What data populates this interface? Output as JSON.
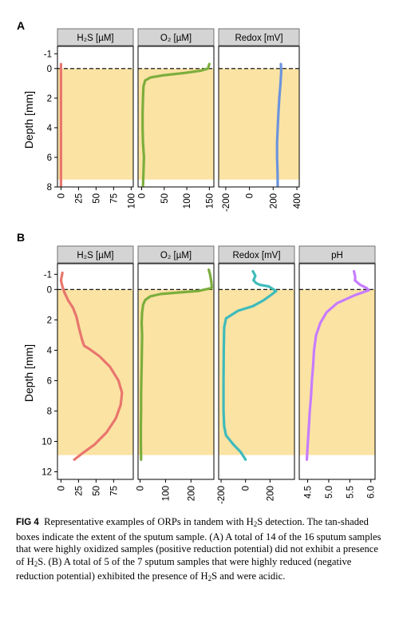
{
  "figure": {
    "panel_a_label": "A",
    "panel_b_label": "B",
    "y_axis_label": "Depth [mm]"
  },
  "caption": {
    "fig_label": "FIG 4",
    "text_1": "Representative examples of ORPs in tandem with H",
    "sub_1": "2",
    "text_2": "S detection. The tan-shaded boxes indicate the extent of the sputum sample. (A) A total of 14 of the 16 sputum samples that were highly oxidized samples (positive reduction potential) did not exhibit a presence of H",
    "sub_2": "2",
    "text_3": "S. (B) A total of 5 of the 7 sputum samples that were highly reduced (negative reduction potential) exhibited the presence of H",
    "sub_3": "2",
    "text_4": "S and were acidic."
  },
  "chart_data": [
    {
      "panel": "A",
      "type": "line",
      "ylabel": "Depth [mm]",
      "ylim": [
        8,
        -1.5
      ],
      "yticks": [
        -1,
        0,
        2,
        4,
        6,
        8
      ],
      "surface_line": 0,
      "sample_extent": [
        0,
        7.5
      ],
      "colors": {
        "H2S": "#E8766D",
        "O2": "#7CAE3D",
        "Redox": "#6C94DC",
        "shade": "#FBE3A4"
      },
      "facets": [
        {
          "title": "H₂S [µM]",
          "xlim": [
            -5,
            103
          ],
          "xticks": [
            0,
            25,
            50,
            75,
            100
          ],
          "series": [
            {
              "name": "H2S",
              "points": [
                [
                  0,
                  -0.3
                ],
                [
                  0,
                  1
                ],
                [
                  0,
                  2
                ],
                [
                  0,
                  3
                ],
                [
                  0,
                  4
                ],
                [
                  0,
                  5
                ],
                [
                  0,
                  6
                ],
                [
                  0,
                  7
                ],
                [
                  0,
                  7.9
                ]
              ]
            }
          ]
        },
        {
          "title": "O₂ [µM]",
          "xlim": [
            -8,
            160
          ],
          "xticks": [
            0,
            50,
            100,
            150
          ],
          "series": [
            {
              "name": "O2",
              "points": [
                [
                  150,
                  -0.3
                ],
                [
                  147,
                  0
                ],
                [
                  130,
                  0.15
                ],
                [
                  95,
                  0.3
                ],
                [
                  50,
                  0.45
                ],
                [
                  20,
                  0.6
                ],
                [
                  8,
                  0.8
                ],
                [
                  4,
                  1.2
                ],
                [
                  3,
                  2
                ],
                [
                  2,
                  3
                ],
                [
                  2,
                  4
                ],
                [
                  3,
                  5
                ],
                [
                  5,
                  6
                ],
                [
                  4,
                  7
                ],
                [
                  3,
                  7.9
                ]
              ]
            }
          ]
        },
        {
          "title": "Redox [mV]",
          "xlim": [
            -260,
            420
          ],
          "xticks": [
            -200,
            0,
            200,
            400
          ],
          "series": [
            {
              "name": "Redox",
              "points": [
                [
                  265,
                  -0.3
                ],
                [
                  268,
                  0.2
                ],
                [
                  262,
                  1
                ],
                [
                  252,
                  2
                ],
                [
                  244,
                  3
                ],
                [
                  238,
                  4
                ],
                [
                  233,
                  5
                ],
                [
                  233,
                  6
                ],
                [
                  237,
                  7
                ],
                [
                  238,
                  7.9
                ]
              ]
            }
          ]
        }
      ]
    },
    {
      "panel": "B",
      "type": "line",
      "ylabel": "Depth [mm]",
      "ylim": [
        12.5,
        -1.7
      ],
      "yticks": [
        -1,
        0,
        2,
        4,
        6,
        8,
        10,
        12
      ],
      "surface_line": 0,
      "sample_extent": [
        0,
        10.9
      ],
      "colors": {
        "H2S": "#E8766D",
        "O2": "#7CAE3D",
        "Redox": "#3FBBBB",
        "pH": "#C77CFF",
        "shade": "#FBE3A4"
      },
      "facets": [
        {
          "title": "H₂S [µM]",
          "xlim": [
            -5,
            103
          ],
          "xticks": [
            0,
            25,
            50,
            75
          ],
          "series": [
            {
              "name": "H2S",
              "points": [
                [
                  2,
                  -1.1
                ],
                [
                  0,
                  -0.6
                ],
                [
                  2,
                  -0.2
                ],
                [
                  5,
                  0.2
                ],
                [
                  10,
                  0.7
                ],
                [
                  17,
                  1.2
                ],
                [
                  22,
                  1.8
                ],
                [
                  26,
                  2.6
                ],
                [
                  30,
                  3.3
                ],
                [
                  33,
                  3.7
                ],
                [
                  40,
                  3.9
                ],
                [
                  55,
                  4.4
                ],
                [
                  70,
                  5.1
                ],
                [
                  82,
                  6.0
                ],
                [
                  87,
                  6.8
                ],
                [
                  85,
                  7.6
                ],
                [
                  78,
                  8.5
                ],
                [
                  65,
                  9.4
                ],
                [
                  48,
                  10.2
                ],
                [
                  30,
                  10.8
                ],
                [
                  19,
                  11.2
                ]
              ]
            }
          ]
        },
        {
          "title": "O₂ [µM]",
          "xlim": [
            -8,
            290
          ],
          "xticks": [
            0,
            100,
            200
          ],
          "series": [
            {
              "name": "O2",
              "points": [
                [
                  270,
                  -1.3
                ],
                [
                  275,
                  -1.0
                ],
                [
                  280,
                  -0.5
                ],
                [
                  282,
                  -0.1
                ],
                [
                  230,
                  0.1
                ],
                [
                  150,
                  0.2
                ],
                [
                  80,
                  0.3
                ],
                [
                  40,
                  0.45
                ],
                [
                  20,
                  0.7
                ],
                [
                  12,
                  1.0
                ],
                [
                  8,
                  1.5
                ],
                [
                  6,
                  2.2
                ],
                [
                  8,
                  3
                ],
                [
                  7,
                  4
                ],
                [
                  6,
                  5
                ],
                [
                  5,
                  6
                ],
                [
                  4,
                  7
                ],
                [
                  4,
                  8
                ],
                [
                  3,
                  9
                ],
                [
                  3,
                  10
                ],
                [
                  4,
                  11.2
                ]
              ]
            }
          ]
        },
        {
          "title": "Redox [mV]",
          "xlim": [
            -220,
            400
          ],
          "xticks": [
            -200,
            0,
            200
          ],
          "series": [
            {
              "name": "Redox",
              "points": [
                [
                  60,
                  -1.2
                ],
                [
                  80,
                  -0.9
                ],
                [
                  65,
                  -0.6
                ],
                [
                  90,
                  -0.4
                ],
                [
                  120,
                  -0.3
                ],
                [
                  190,
                  -0.2
                ],
                [
                  250,
                  0.1
                ],
                [
                  210,
                  0.35
                ],
                [
                  150,
                  0.7
                ],
                [
                  60,
                  1.1
                ],
                [
                  -60,
                  1.4
                ],
                [
                  -160,
                  1.9
                ],
                [
                  -175,
                  2.5
                ],
                [
                  -178,
                  4
                ],
                [
                  -180,
                  6
                ],
                [
                  -180,
                  8
                ],
                [
                  -175,
                  9
                ],
                [
                  -160,
                  9.6
                ],
                [
                  -100,
                  10.2
                ],
                [
                  -40,
                  10.7
                ],
                [
                  0,
                  11.2
                ]
              ]
            }
          ]
        },
        {
          "title": "pH",
          "xlim": [
            4.3,
            6.1
          ],
          "xticks": [
            4.5,
            5.0,
            5.5,
            6.0
          ],
          "series": [
            {
              "name": "pH",
              "points": [
                [
                  5.6,
                  -1.2
                ],
                [
                  5.63,
                  -0.8
                ],
                [
                  5.62,
                  -0.6
                ],
                [
                  5.75,
                  -0.3
                ],
                [
                  5.9,
                  -0.1
                ],
                [
                  5.95,
                  0.05
                ],
                [
                  5.6,
                  0.4
                ],
                [
                  5.2,
                  0.9
                ],
                [
                  4.95,
                  1.5
                ],
                [
                  4.8,
                  2.2
                ],
                [
                  4.7,
                  3
                ],
                [
                  4.65,
                  4
                ],
                [
                  4.63,
                  5
                ],
                [
                  4.6,
                  6
                ],
                [
                  4.58,
                  7
                ],
                [
                  4.55,
                  8
                ],
                [
                  4.53,
                  9
                ],
                [
                  4.5,
                  10.2
                ],
                [
                  4.48,
                  11.2
                ]
              ]
            }
          ]
        }
      ]
    }
  ]
}
